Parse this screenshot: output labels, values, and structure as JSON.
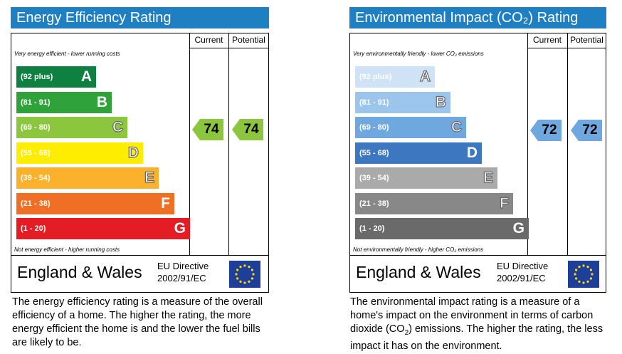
{
  "ee": {
    "title": "Energy Efficiency Rating",
    "col_current": "Current",
    "col_potential": "Potential",
    "top_note": "Very energy efficient - lower running costs",
    "bottom_note": "Not energy efficient - higher running costs",
    "bands": [
      {
        "range": "(92 plus)",
        "letter": "A",
        "color": "#0e8040"
      },
      {
        "range": "(81 - 91)",
        "letter": "B",
        "color": "#2fa23a"
      },
      {
        "range": "(69 - 80)",
        "letter": "C",
        "color": "#8cc63e"
      },
      {
        "range": "(55 - 68)",
        "letter": "D",
        "color": "#ffed00"
      },
      {
        "range": "(39 - 54)",
        "letter": "E",
        "color": "#fbb12b"
      },
      {
        "range": "(21 - 38)",
        "letter": "F",
        "color": "#ef6f24"
      },
      {
        "range": "(1 - 20)",
        "letter": "G",
        "color": "#e31d23"
      }
    ],
    "current": 74,
    "potential": 74,
    "arrow_color": "#8cc63e",
    "region": "England & Wales",
    "directive_line1": "EU Directive",
    "directive_line2": "2002/91/EC",
    "description": "The energy efficiency rating is a measure of the overall efficiency of a home. The higher the rating, the more energy efficient the home is and the lower the fuel bills are likely to be."
  },
  "ei": {
    "title": "Environmental Impact (CO₂) Rating",
    "col_current": "Current",
    "col_potential": "Potential",
    "top_note": "Very environmentally friendly - lower CO₂ emissions",
    "bottom_note": "Not environmentally friendly - higher CO₂ emissions",
    "bands": [
      {
        "range": "(92 plus)",
        "letter": "A",
        "color": "#cfe2f6"
      },
      {
        "range": "(81 - 91)",
        "letter": "B",
        "color": "#9cc5ec"
      },
      {
        "range": "(69 - 80)",
        "letter": "C",
        "color": "#6fa7df"
      },
      {
        "range": "(55 - 68)",
        "letter": "D",
        "color": "#3d77c0"
      },
      {
        "range": "(39 - 54)",
        "letter": "E",
        "color": "#aaaaaa"
      },
      {
        "range": "(21 - 38)",
        "letter": "F",
        "color": "#888888"
      },
      {
        "range": "(1 - 20)",
        "letter": "G",
        "color": "#6a6a6a"
      }
    ],
    "current": 72,
    "potential": 72,
    "arrow_color": "#6fa7df",
    "region": "England & Wales",
    "directive_line1": "EU Directive",
    "directive_line2": "2002/91/EC",
    "description_before": "The environmental impact rating is a measure of a home's impact on the environment in terms of carbon dioxide (CO",
    "description_sub": "2",
    "description_after": ") emissions. The higher the rating, the less impact it has on the environment."
  }
}
